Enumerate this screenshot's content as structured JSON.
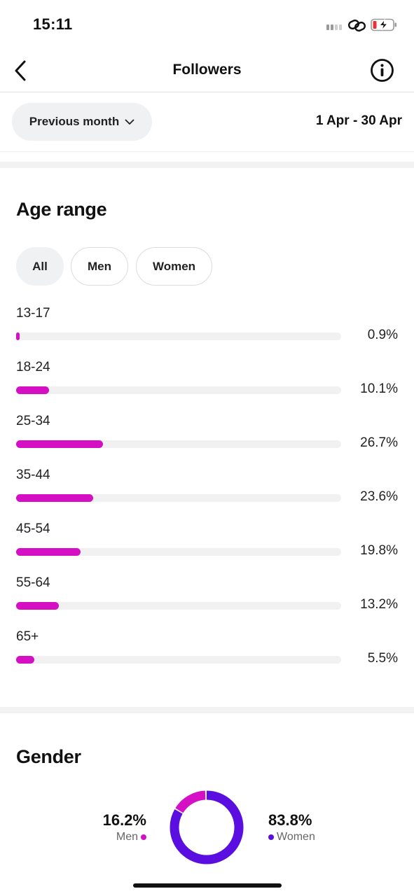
{
  "status": {
    "time": "15:11"
  },
  "header": {
    "title": "Followers"
  },
  "filters": {
    "period_label": "Previous month",
    "date_range": "1 Apr - 30 Apr"
  },
  "age": {
    "title": "Age range",
    "segments": [
      "All",
      "Men",
      "Women"
    ],
    "active_segment": "All",
    "rows": [
      {
        "label": "13-17",
        "pct": "0.9%",
        "value": 0.9
      },
      {
        "label": "18-24",
        "pct": "10.1%",
        "value": 10.1
      },
      {
        "label": "25-34",
        "pct": "26.7%",
        "value": 26.7
      },
      {
        "label": "35-44",
        "pct": "23.6%",
        "value": 23.6
      },
      {
        "label": "45-54",
        "pct": "19.8%",
        "value": 19.8
      },
      {
        "label": "55-64",
        "pct": "13.2%",
        "value": 13.2
      },
      {
        "label": "65+",
        "pct": "5.5%",
        "value": 5.5
      }
    ]
  },
  "gender": {
    "title": "Gender",
    "men": {
      "pct": "16.2%",
      "label": "Men",
      "value": 16.2
    },
    "women": {
      "pct": "83.8%",
      "label": "Women",
      "value": 83.8
    }
  },
  "colors": {
    "accent_magenta": "#d40fc4",
    "accent_purple": "#5a0fe0"
  }
}
